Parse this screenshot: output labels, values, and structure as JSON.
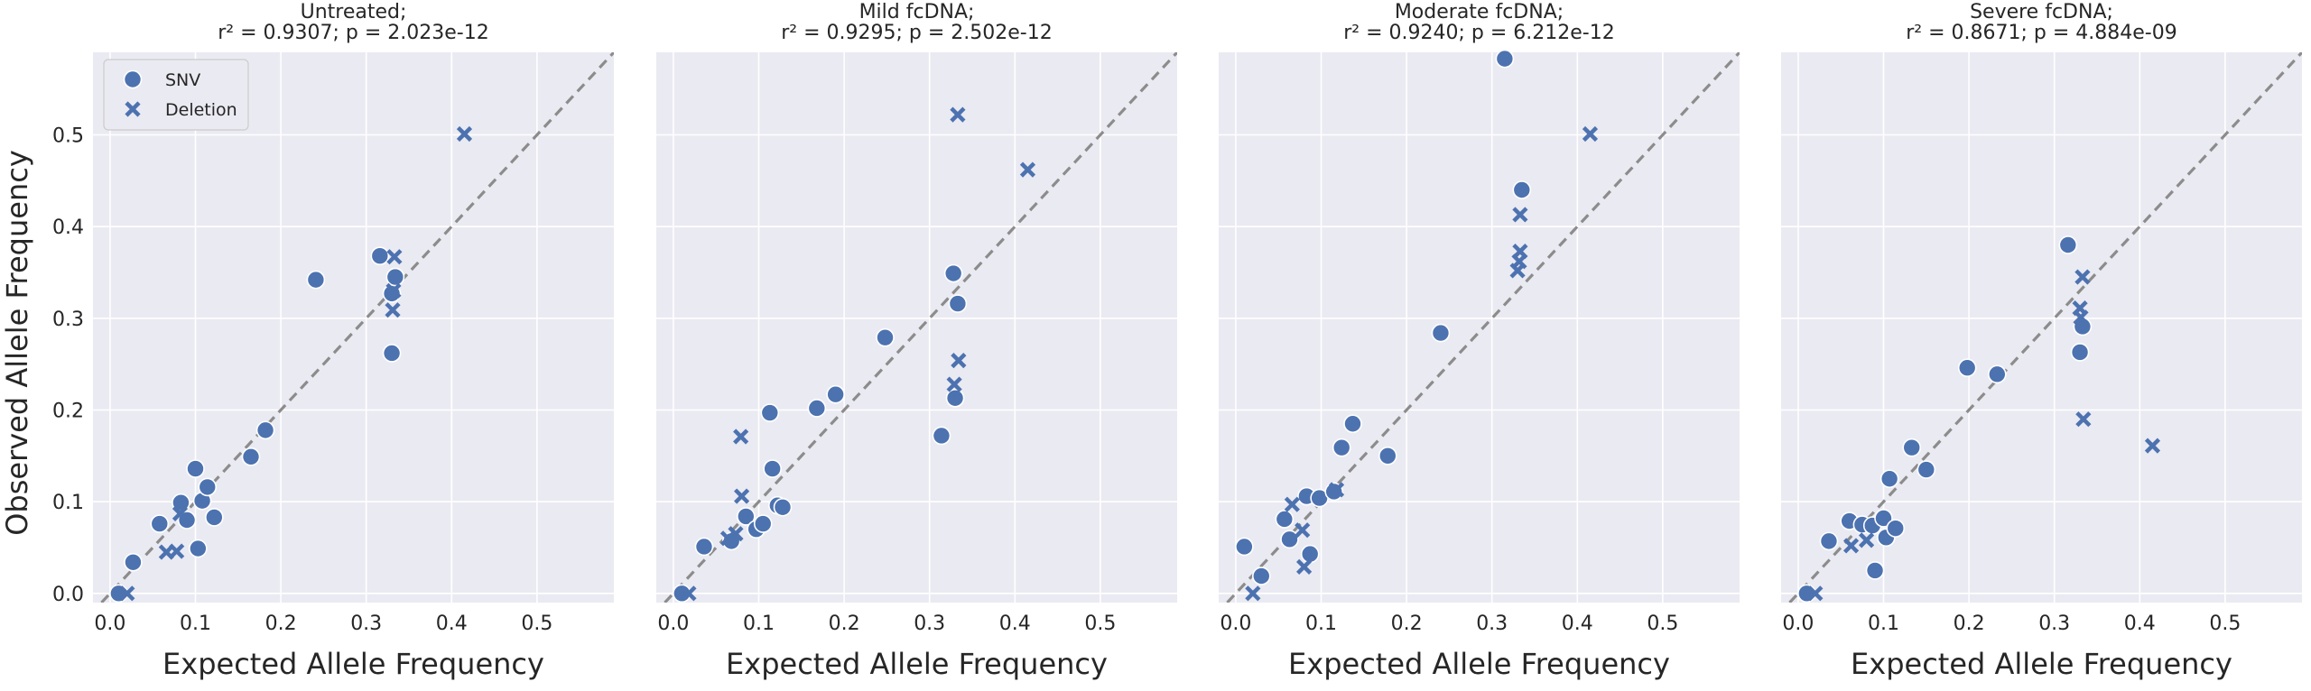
{
  "chart_data": {
    "type": "scatter",
    "shared_ylabel": "Observed Allele Frequency",
    "legend": {
      "placement": "top-left of first panel",
      "entries": [
        {
          "name": "SNV",
          "marker": "circle"
        },
        {
          "name": "Deletion",
          "marker": "cross"
        }
      ]
    },
    "colors": {
      "marker": "#4c72b0",
      "background": "#eaeaf2",
      "diagonal": "#8c8c8c"
    },
    "panels": [
      {
        "title_line1": "Untreated;",
        "title_line2": "r² = 0.9307; p = 2.023e-12",
        "xlabel": "Expected Allele Frequency",
        "xlim": [
          -0.02,
          0.59
        ],
        "ylim": [
          -0.01,
          0.59
        ],
        "xticks": [
          "0.0",
          "0.1",
          "0.2",
          "0.3",
          "0.4",
          "0.5"
        ],
        "yticks": [
          "0.0",
          "0.1",
          "0.2",
          "0.3",
          "0.4",
          "0.5"
        ],
        "snv": [
          [
            0.01,
            0.0
          ],
          [
            0.027,
            0.034
          ],
          [
            0.058,
            0.076
          ],
          [
            0.083,
            0.099
          ],
          [
            0.09,
            0.08
          ],
          [
            0.1,
            0.136
          ],
          [
            0.108,
            0.101
          ],
          [
            0.114,
            0.116
          ],
          [
            0.122,
            0.083
          ],
          [
            0.103,
            0.049
          ],
          [
            0.165,
            0.149
          ],
          [
            0.182,
            0.178
          ],
          [
            0.241,
            0.342
          ],
          [
            0.316,
            0.368
          ],
          [
            0.33,
            0.327
          ],
          [
            0.334,
            0.345
          ],
          [
            0.33,
            0.262
          ]
        ],
        "deletion": [
          [
            0.02,
            0.0
          ],
          [
            0.066,
            0.045
          ],
          [
            0.078,
            0.046
          ],
          [
            0.082,
            0.087
          ],
          [
            0.333,
            0.367
          ],
          [
            0.331,
            0.309
          ],
          [
            0.332,
            0.33
          ],
          [
            0.415,
            0.501
          ]
        ]
      },
      {
        "title_line1": "Mild fcDNA;",
        "title_line2": "r² = 0.9295; p = 2.502e-12",
        "xlabel": "Expected Allele Frequency",
        "xlim": [
          -0.02,
          0.59
        ],
        "ylim": [
          -0.01,
          0.59
        ],
        "xticks": [
          "0.0",
          "0.1",
          "0.2",
          "0.3",
          "0.4",
          "0.5"
        ],
        "yticks": [],
        "snv": [
          [
            0.01,
            0.0
          ],
          [
            0.036,
            0.051
          ],
          [
            0.068,
            0.057
          ],
          [
            0.085,
            0.084
          ],
          [
            0.097,
            0.07
          ],
          [
            0.105,
            0.076
          ],
          [
            0.113,
            0.197
          ],
          [
            0.116,
            0.136
          ],
          [
            0.122,
            0.096
          ],
          [
            0.128,
            0.094
          ],
          [
            0.168,
            0.202
          ],
          [
            0.19,
            0.217
          ],
          [
            0.248,
            0.279
          ],
          [
            0.314,
            0.172
          ],
          [
            0.328,
            0.349
          ],
          [
            0.333,
            0.316
          ],
          [
            0.33,
            0.213
          ]
        ],
        "deletion": [
          [
            0.018,
            0.0
          ],
          [
            0.064,
            0.06
          ],
          [
            0.073,
            0.065
          ],
          [
            0.079,
            0.171
          ],
          [
            0.08,
            0.106
          ],
          [
            0.333,
            0.522
          ],
          [
            0.415,
            0.462
          ],
          [
            0.334,
            0.254
          ],
          [
            0.329,
            0.228
          ]
        ]
      },
      {
        "title_line1": "Moderate fcDNA;",
        "title_line2": "r² = 0.9240; p = 6.212e-12",
        "xlabel": "Expected Allele Frequency",
        "xlim": [
          -0.02,
          0.59
        ],
        "ylim": [
          -0.01,
          0.59
        ],
        "xticks": [
          "0.0",
          "0.1",
          "0.2",
          "0.3",
          "0.4",
          "0.5"
        ],
        "yticks": [],
        "snv": [
          [
            0.01,
            0.051
          ],
          [
            0.03,
            0.019
          ],
          [
            0.057,
            0.081
          ],
          [
            0.063,
            0.059
          ],
          [
            0.083,
            0.106
          ],
          [
            0.087,
            0.043
          ],
          [
            0.098,
            0.104
          ],
          [
            0.115,
            0.111
          ],
          [
            0.124,
            0.159
          ],
          [
            0.137,
            0.185
          ],
          [
            0.178,
            0.15
          ],
          [
            0.24,
            0.284
          ],
          [
            0.315,
            0.583
          ],
          [
            0.335,
            0.44
          ]
        ],
        "deletion": [
          [
            0.02,
            0.0
          ],
          [
            0.066,
            0.097
          ],
          [
            0.078,
            0.069
          ],
          [
            0.08,
            0.029
          ],
          [
            0.118,
            0.113
          ],
          [
            0.33,
            0.352
          ],
          [
            0.332,
            0.362
          ],
          [
            0.333,
            0.373
          ],
          [
            0.333,
            0.413
          ],
          [
            0.415,
            0.501
          ]
        ]
      },
      {
        "title_line1": "Severe fcDNA;",
        "title_line2": "r² = 0.8671; p = 4.884e-09",
        "xlabel": "Expected Allele Frequency",
        "xlim": [
          -0.02,
          0.59
        ],
        "ylim": [
          -0.01,
          0.59
        ],
        "xticks": [
          "0.0",
          "0.1",
          "0.2",
          "0.3",
          "0.4",
          "0.5"
        ],
        "yticks": [],
        "snv": [
          [
            0.01,
            0.0
          ],
          [
            0.036,
            0.057
          ],
          [
            0.06,
            0.079
          ],
          [
            0.075,
            0.075
          ],
          [
            0.087,
            0.074
          ],
          [
            0.09,
            0.025
          ],
          [
            0.1,
            0.082
          ],
          [
            0.103,
            0.061
          ],
          [
            0.107,
            0.125
          ],
          [
            0.114,
            0.071
          ],
          [
            0.133,
            0.159
          ],
          [
            0.15,
            0.135
          ],
          [
            0.198,
            0.246
          ],
          [
            0.233,
            0.239
          ],
          [
            0.316,
            0.38
          ],
          [
            0.33,
            0.263
          ],
          [
            0.333,
            0.291
          ]
        ],
        "deletion": [
          [
            0.02,
            0.0
          ],
          [
            0.062,
            0.052
          ],
          [
            0.08,
            0.058
          ],
          [
            0.33,
            0.311
          ],
          [
            0.331,
            0.301
          ],
          [
            0.333,
            0.345
          ],
          [
            0.334,
            0.19
          ],
          [
            0.415,
            0.161
          ]
        ]
      }
    ]
  }
}
